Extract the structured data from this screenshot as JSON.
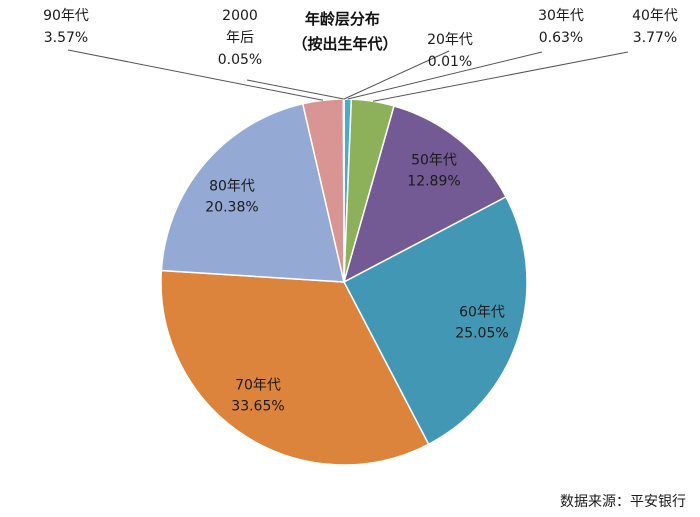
{
  "chart_data": {
    "type": "pie",
    "title_lines": [
      "年龄层分布",
      "（按出生年代）"
    ],
    "source": "数据来源：平安银行",
    "slices": [
      {
        "category": "20年代",
        "percent_label": "0.01%",
        "value": 0.01,
        "color": "#4f81bd"
      },
      {
        "category": "30年代",
        "percent_label": "0.63%",
        "value": 0.63,
        "color": "#4bacc6"
      },
      {
        "category": "40年代",
        "percent_label": "3.77%",
        "value": 3.77,
        "color": "#8db05a"
      },
      {
        "category": "50年代",
        "percent_label": "12.89%",
        "value": 12.89,
        "color": "#735a94"
      },
      {
        "category": "60年代",
        "percent_label": "25.05%",
        "value": 25.05,
        "color": "#4298b4"
      },
      {
        "category": "70年代",
        "percent_label": "33.65%",
        "value": 33.65,
        "color": "#dc843c"
      },
      {
        "category": "80年代",
        "percent_label": "20.38%",
        "value": 20.38,
        "color": "#94a9d4"
      },
      {
        "category": "90年代",
        "percent_label": "3.57%",
        "value": 3.57,
        "color": "#d99594"
      },
      {
        "category": "2000年后",
        "category_lines": [
          "2000",
          "年后"
        ],
        "percent_label": "0.05%",
        "value": 0.05,
        "color": "#c0504d"
      }
    ]
  }
}
